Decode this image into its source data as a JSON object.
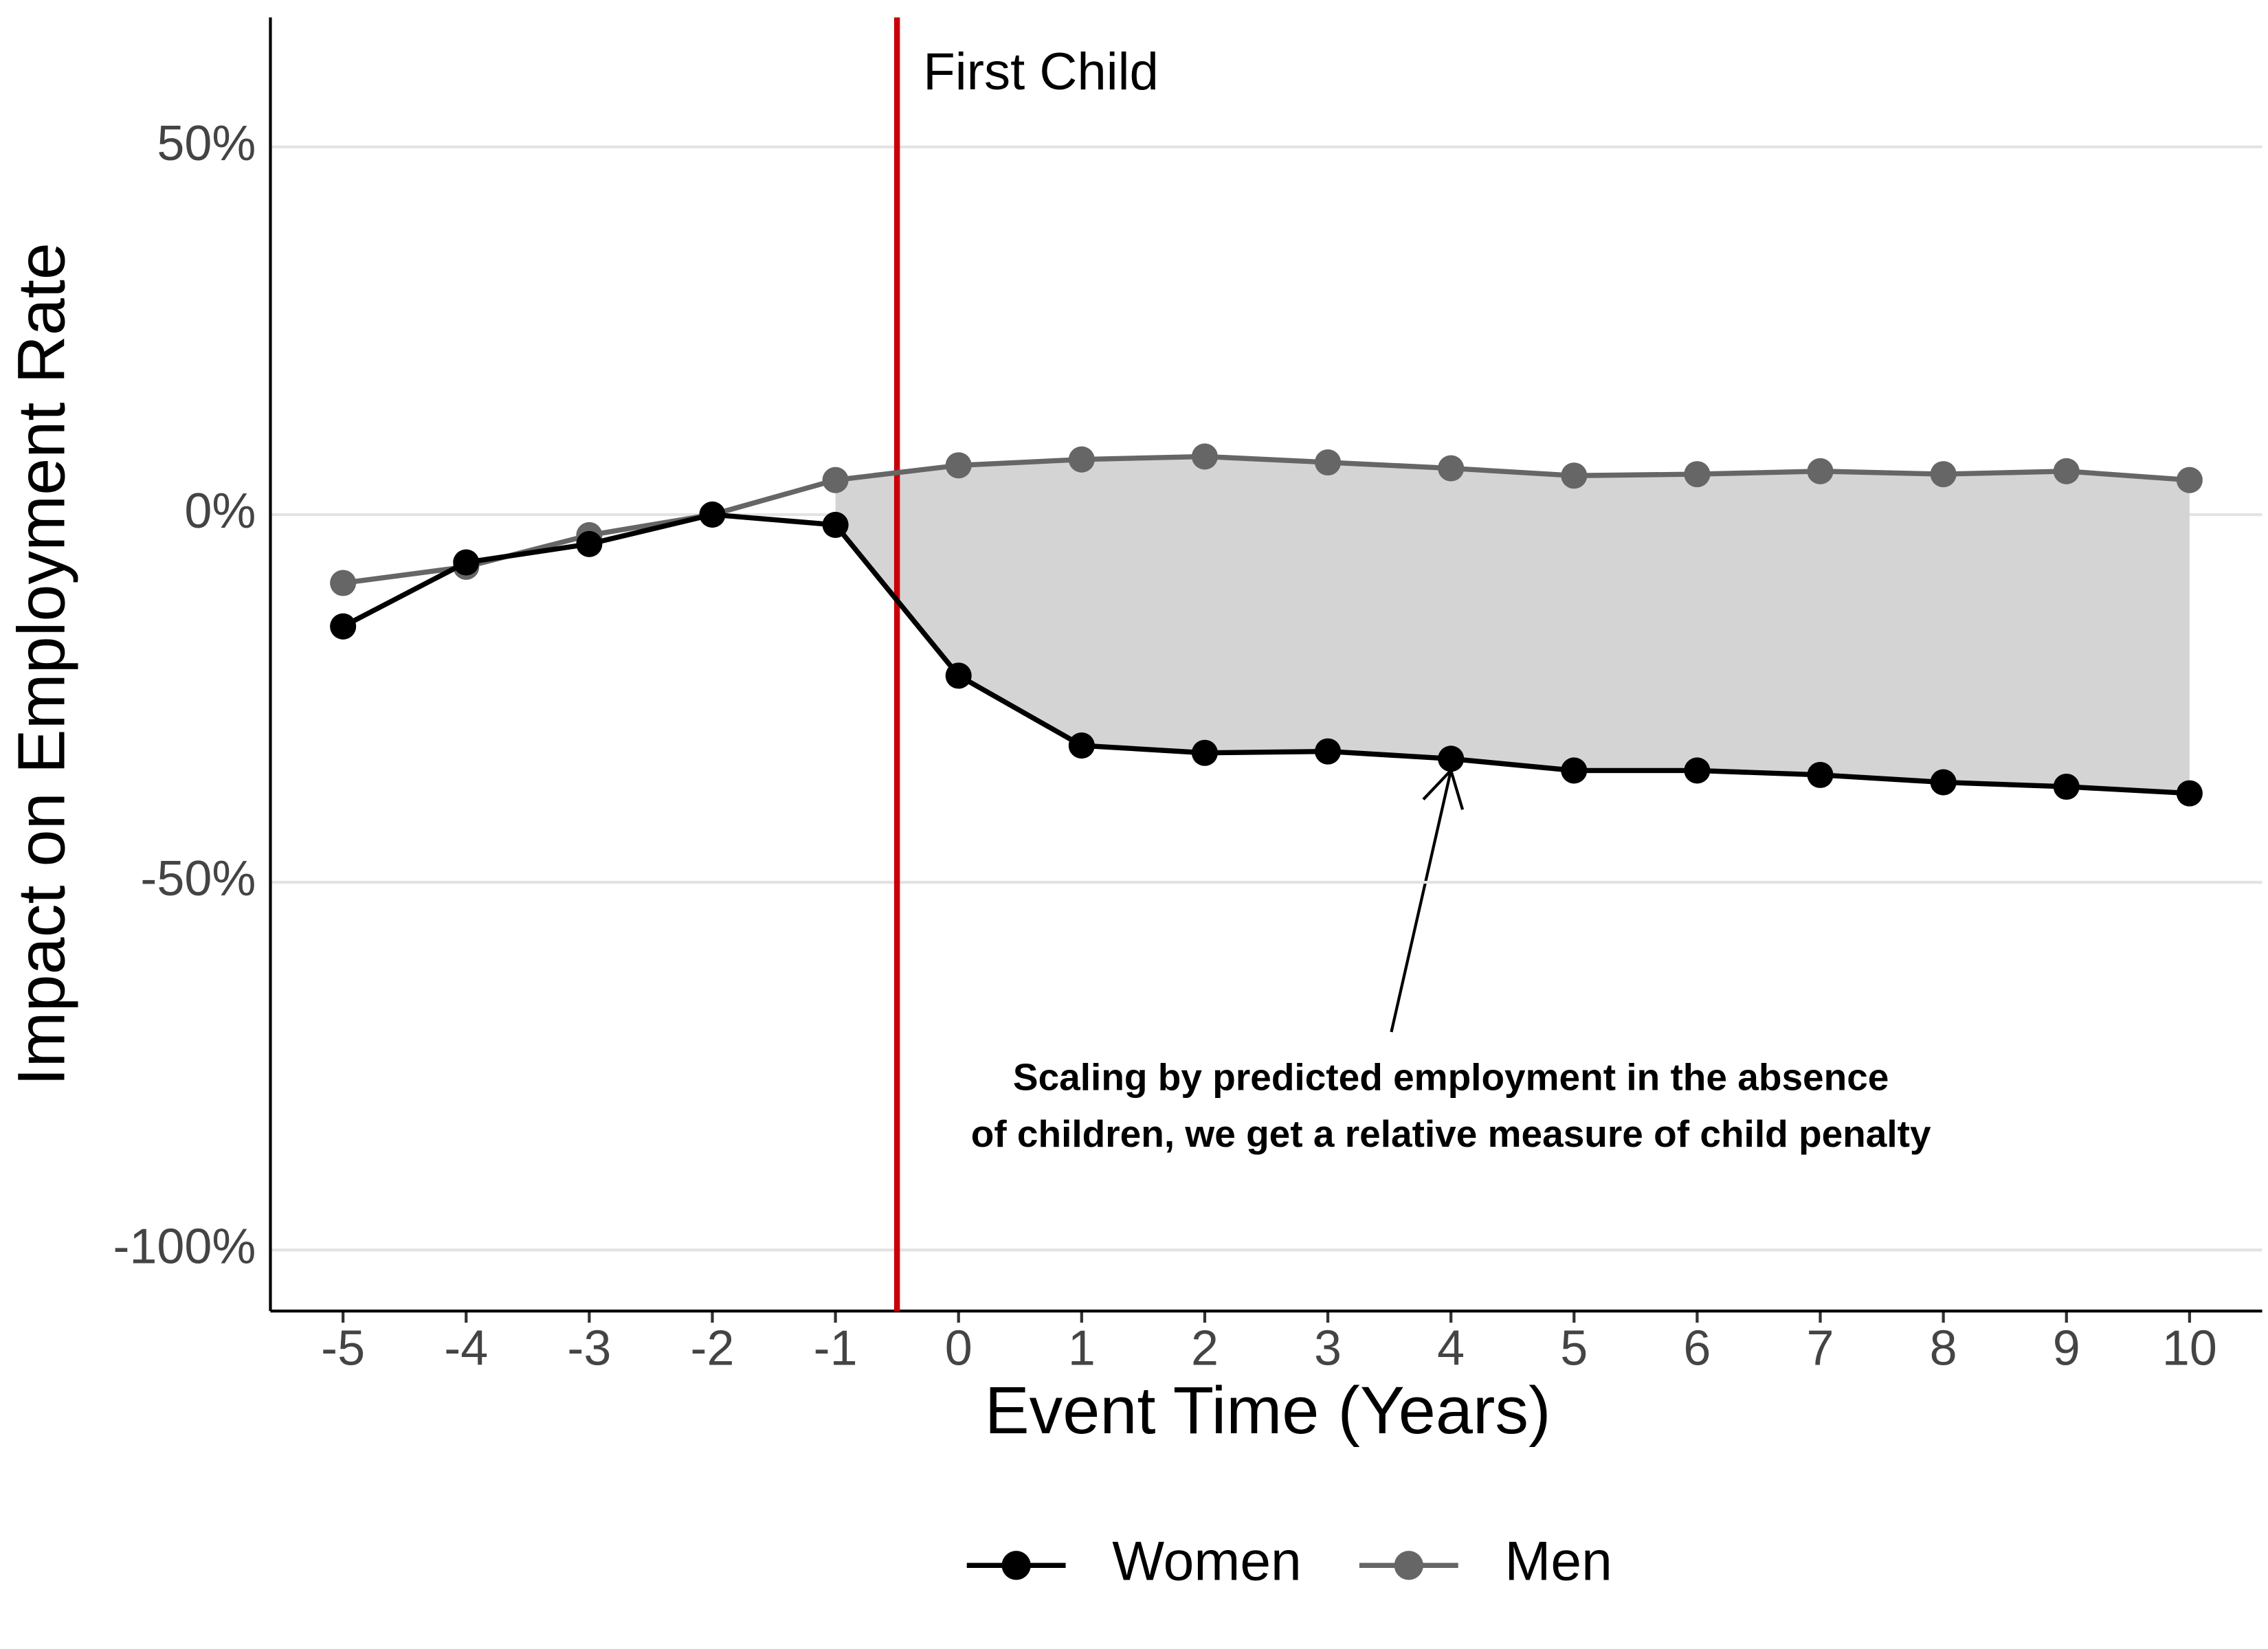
{
  "chart_data": {
    "type": "line",
    "x": [
      -5,
      -4,
      -3,
      -2,
      -1,
      0,
      1,
      2,
      3,
      4,
      5,
      6,
      7,
      8,
      9,
      10
    ],
    "series": [
      {
        "name": "Women",
        "color": "#000000",
        "values": [
          -15.2,
          -6.5,
          -4.0,
          0,
          -1.4,
          -21.9,
          -31.4,
          -32.4,
          -32.2,
          -33.2,
          -34.8,
          -34.8,
          -35.4,
          -36.4,
          -37.0,
          -37.9
        ]
      },
      {
        "name": "Men",
        "color": "#666666",
        "values": [
          -9.3,
          -7.1,
          -2.8,
          0,
          4.7,
          6.7,
          7.5,
          7.9,
          7.1,
          6.3,
          5.3,
          5.5,
          5.9,
          5.5,
          5.9,
          4.7
        ]
      }
    ],
    "xlabel": "Event Time (Years)",
    "ylabel": "Impact on Employment Rate",
    "xlim": [
      -5.59,
      10.59
    ],
    "ylim": [
      -108.3,
      67.6
    ],
    "xticks": [
      -5,
      -4,
      -3,
      -2,
      -1,
      0,
      1,
      2,
      3,
      4,
      5,
      6,
      7,
      8,
      9,
      10
    ],
    "yticks": [
      {
        "value": -100,
        "label": "-100%"
      },
      {
        "value": -50,
        "label": "-50%"
      },
      {
        "value": 0,
        "label": "0%"
      },
      {
        "value": 50,
        "label": "50%"
      }
    ],
    "grid": true,
    "legend": "bottom",
    "event_x": -0.5,
    "event_color": "#c8000a",
    "event_label": "First Child",
    "shade_from_x": -1,
    "shade_color": "#d4d4d4",
    "annotation": [
      "Scaling by predicted employment in the absence",
      "of children, we get a relative measure of child penalty"
    ]
  }
}
